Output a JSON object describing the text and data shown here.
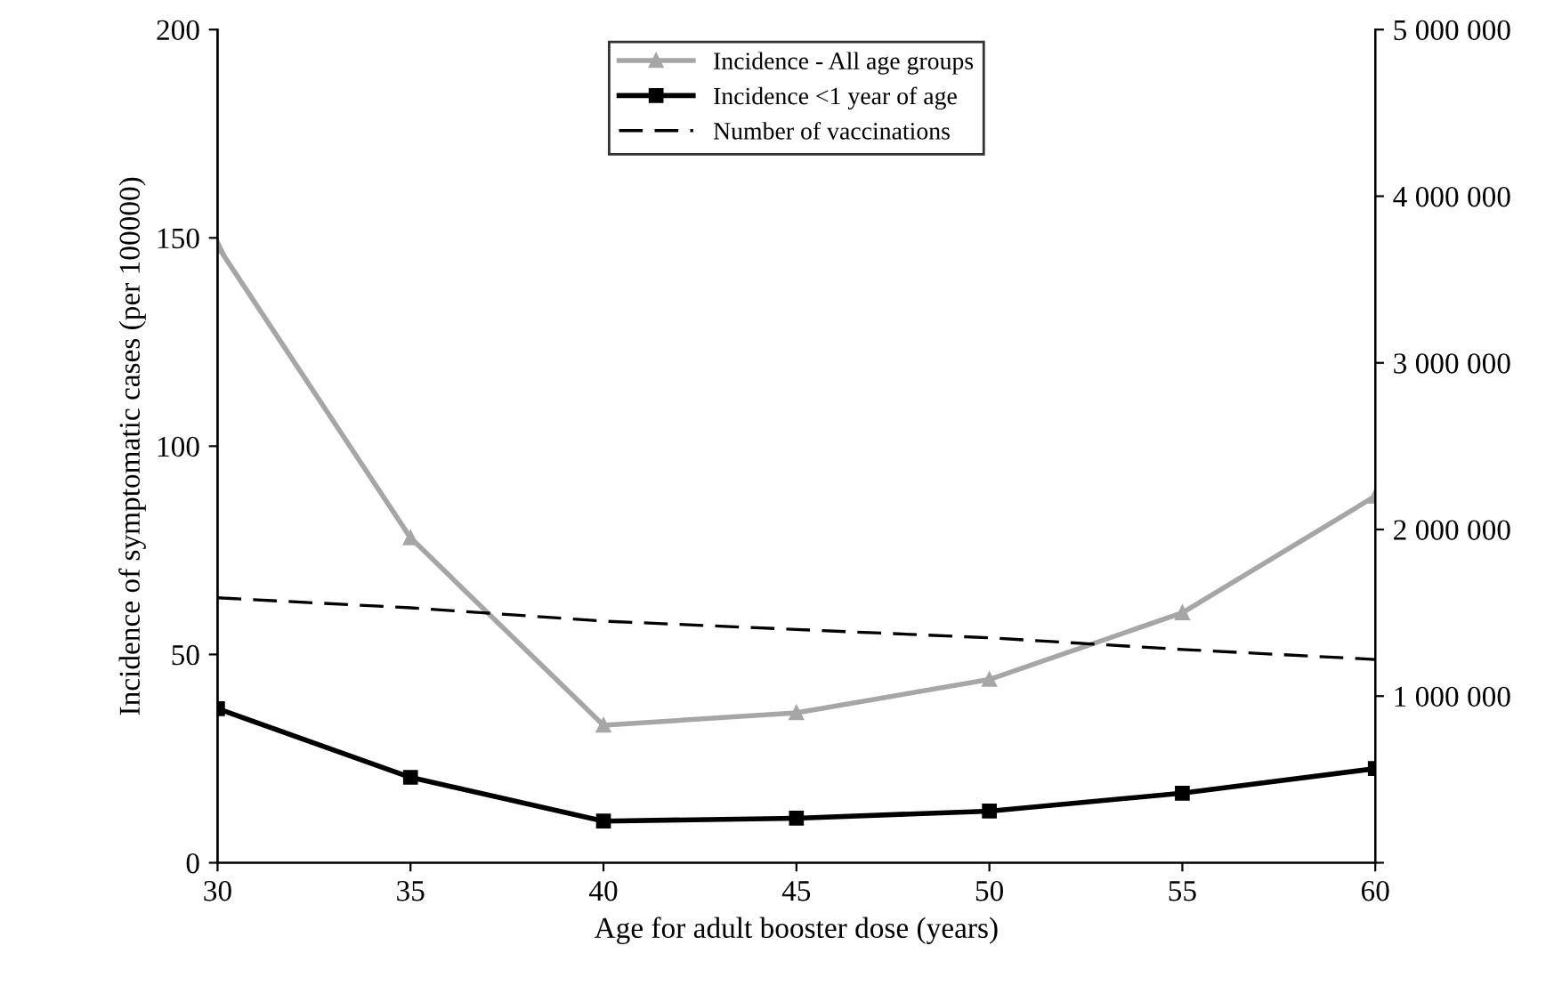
{
  "chart_data": {
    "type": "line",
    "xlabel": "Age for adult booster dose (years)",
    "ylabel": "Incidence of symptomatic cases (per 100000)",
    "x": [
      30,
      35,
      40,
      45,
      50,
      55,
      60
    ],
    "series": [
      {
        "name": "Incidence - All age groups",
        "color": "#a6a6a6",
        "values": [
          148,
          78,
          33,
          36,
          44,
          60,
          88
        ],
        "marker": "triangle",
        "line_style": "solid"
      },
      {
        "name": "Incidence <1 year of age",
        "color": "#000000",
        "values": [
          37,
          20.5,
          10,
          10.7,
          12.4,
          16.7,
          22.6
        ],
        "marker": "square",
        "line_style": "solid"
      },
      {
        "name": "Number of vaccinations",
        "color": "#000000",
        "values": [
          1590000,
          1530000,
          1450000,
          1400000,
          1350000,
          1280000,
          1220000
        ],
        "marker": "none",
        "line_style": "dashed",
        "axis": "y2"
      }
    ],
    "xlim": [
      30,
      60
    ],
    "xticks": [
      30,
      35,
      40,
      45,
      50,
      55,
      60
    ],
    "ylim": [
      0,
      200
    ],
    "yticks": [
      0,
      50,
      100,
      150,
      200
    ],
    "y2lim": [
      0,
      5000000
    ],
    "y2ticks": [
      {
        "value": 0,
        "label": null
      },
      {
        "value": 1000000,
        "label": "1 000 000"
      },
      {
        "value": 2000000,
        "label": "2 000 000"
      },
      {
        "value": 3000000,
        "label": "3 000 000"
      },
      {
        "value": 4000000,
        "label": "4 000 000"
      },
      {
        "value": 5000000,
        "label": "5 000 000"
      }
    ],
    "grid": false,
    "legend": "top"
  }
}
